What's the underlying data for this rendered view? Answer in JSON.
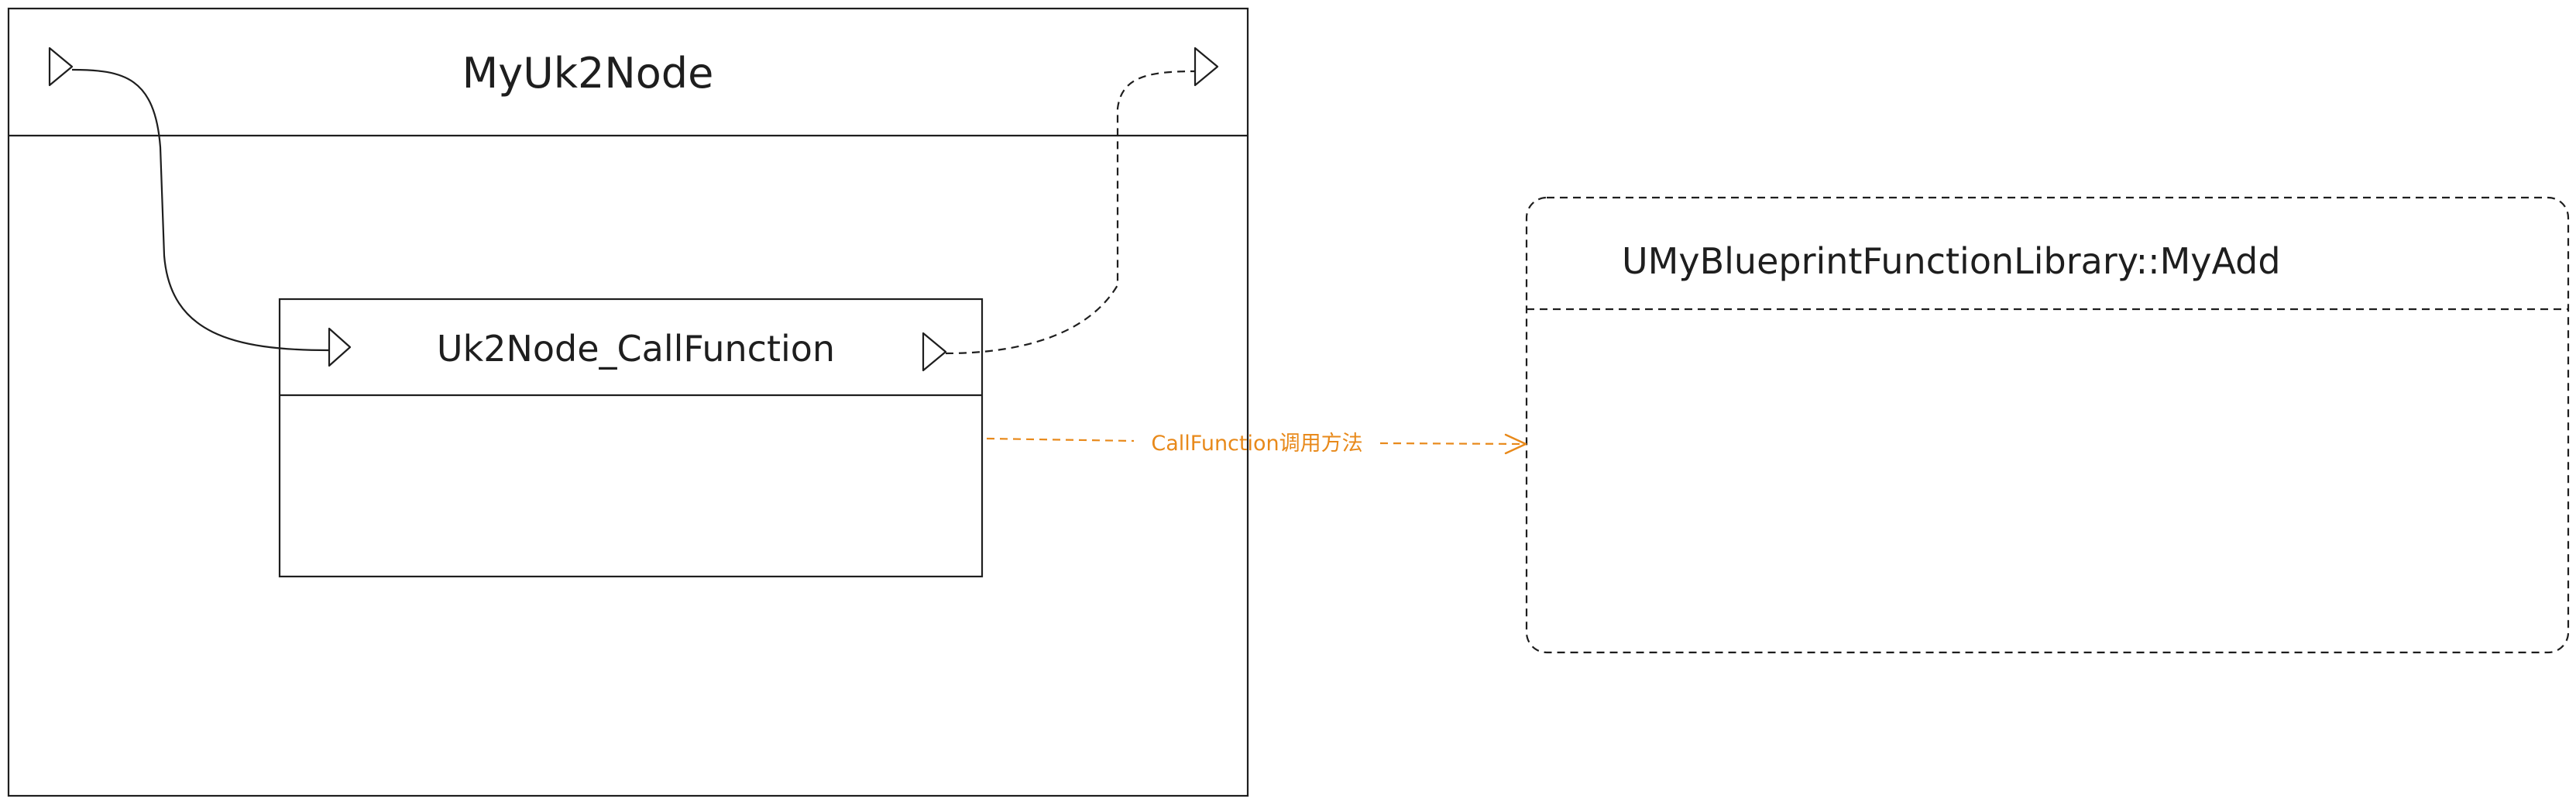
{
  "outer_node": {
    "title": "MyUk2Node"
  },
  "inner_node": {
    "title": "Uk2Node_CallFunction"
  },
  "target_function": {
    "title": "UMyBlueprintFunctionLibrary::MyAdd"
  },
  "call_edge": {
    "label": "CallFunction调用方法"
  },
  "colors": {
    "stroke": "#1e1e1e",
    "accent": "#e8891a",
    "background": "#ffffff"
  },
  "icons": {
    "exec_pin": "triangle-exec-pin-icon",
    "arrow_head": "open-arrow-head-icon"
  }
}
